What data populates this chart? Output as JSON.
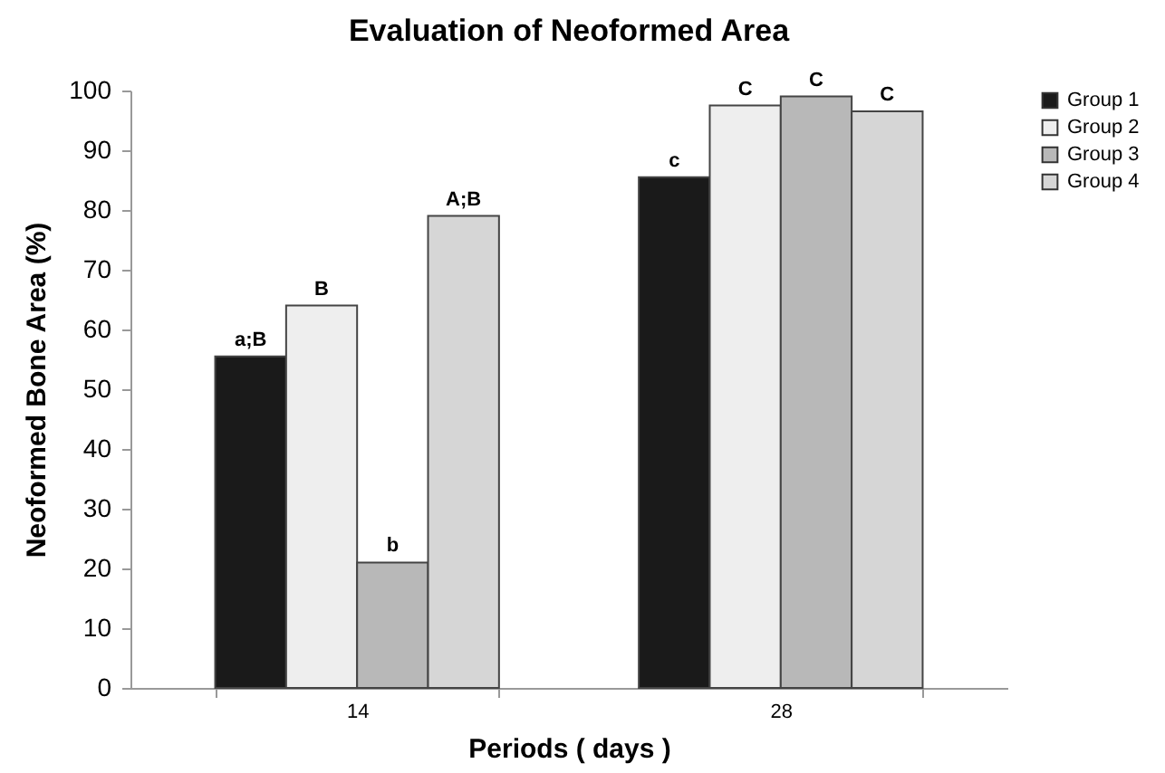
{
  "chart_data": {
    "type": "bar",
    "title": "Evaluation of Neoformed Area",
    "xlabel": "Periods ( days )",
    "ylabel": "Neoformed Bone Area (%)",
    "categories": [
      "14",
      "28"
    ],
    "series": [
      {
        "name": "Group 1",
        "color": "#1a1a1a",
        "values": [
          55.5,
          85.5
        ],
        "value_labels": [
          "a;B",
          "c"
        ]
      },
      {
        "name": "Group 2",
        "color": "#eeeeee",
        "values": [
          64,
          97.5
        ],
        "value_labels": [
          "B",
          "C"
        ]
      },
      {
        "name": "Group 3",
        "color": "#b8b8b8",
        "values": [
          21,
          99
        ],
        "value_labels": [
          "b",
          "C"
        ]
      },
      {
        "name": "Group 4",
        "color": "#d6d6d6",
        "values": [
          79,
          96.5
        ],
        "value_labels": [
          "A;B",
          "C"
        ]
      }
    ],
    "ylim": [
      0,
      100
    ],
    "yticks": [
      0,
      10,
      20,
      30,
      40,
      50,
      60,
      70,
      80,
      90,
      100
    ],
    "legend": "right"
  }
}
